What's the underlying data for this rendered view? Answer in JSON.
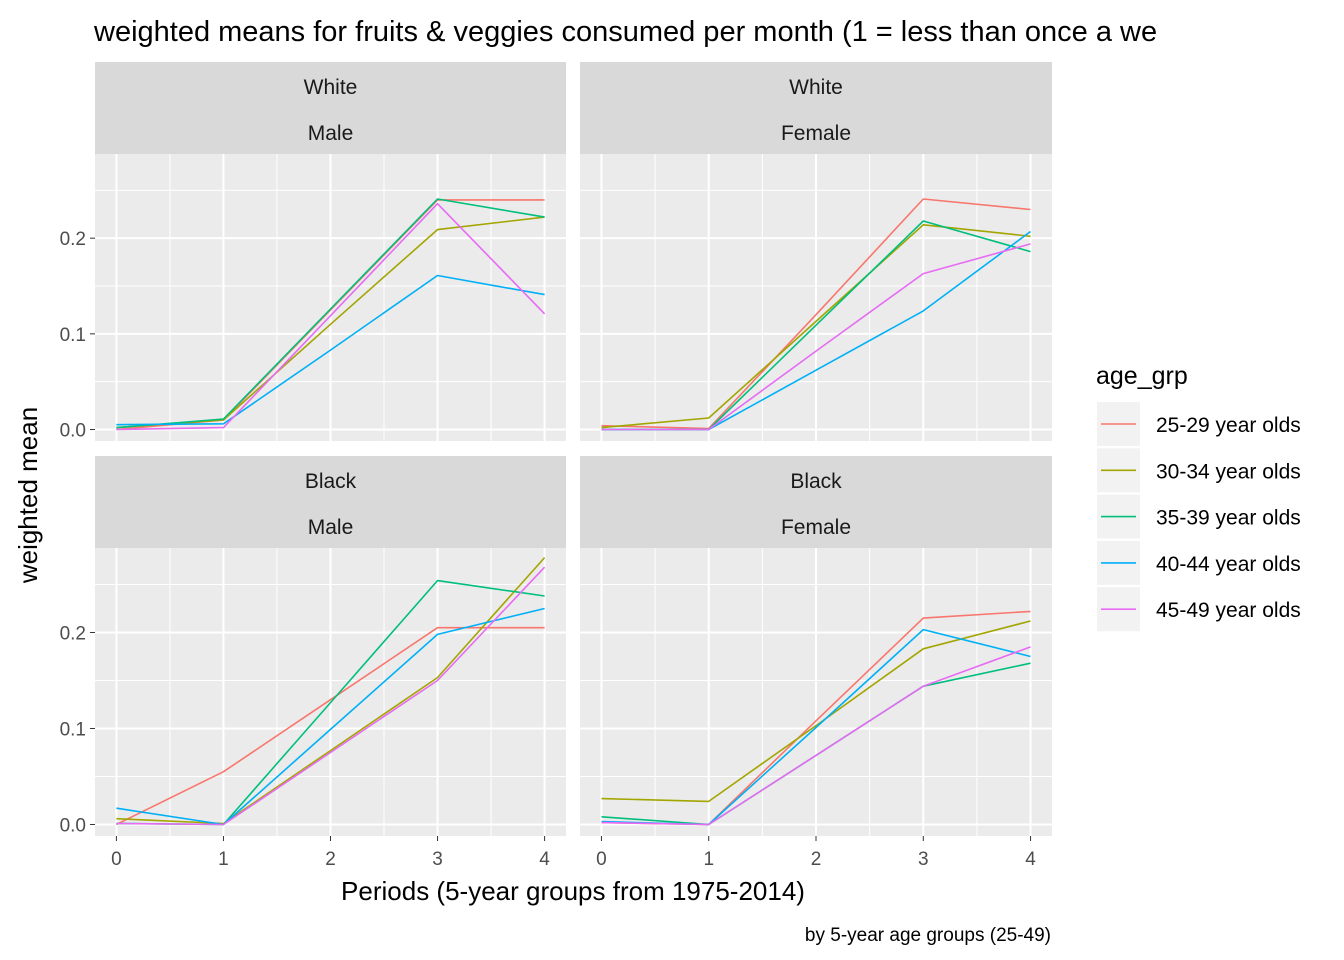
{
  "chart_data": {
    "type": "line",
    "title": "weighted means for fruits & veggies consumed per month (1 = less than once a we",
    "xlabel": "Periods (5-year groups from 1975-2014)",
    "ylabel": "weighted mean",
    "caption": "by 5-year age groups (25-49)",
    "xlim": [
      -0.2,
      4.2
    ],
    "ylim": [
      -0.012,
      0.288
    ],
    "x_ticks": [
      0,
      1,
      2,
      3,
      4
    ],
    "y_ticks": [
      0.0,
      0.1,
      0.2
    ],
    "y_tick_labels": [
      "0.0",
      "0.1",
      "0.2"
    ],
    "grid": true,
    "legend": {
      "title": "age_grp",
      "position": "right",
      "entries": [
        {
          "name": "25-29 year olds",
          "color": "#F8766D"
        },
        {
          "name": "30-34 year olds",
          "color": "#A3A500"
        },
        {
          "name": "35-39 year olds",
          "color": "#00BF7D"
        },
        {
          "name": "40-44 year olds",
          "color": "#00B0F6"
        },
        {
          "name": "45-49 year olds",
          "color": "#E76BF3"
        }
      ]
    },
    "x": [
      0,
      1,
      2,
      3,
      4
    ],
    "panels": [
      {
        "strip": [
          "White",
          "Male"
        ],
        "series": [
          {
            "name": "25-29 year olds",
            "values": [
              0.0,
              0.01,
              0.125,
              0.24,
              0.24
            ]
          },
          {
            "name": "30-34 year olds",
            "values": [
              0.002,
              0.01,
              0.11,
              0.209,
              0.222
            ]
          },
          {
            "name": "35-39 year olds",
            "values": [
              0.002,
              0.011,
              0.126,
              0.241,
              0.222
            ]
          },
          {
            "name": "40-44 year olds",
            "values": [
              0.005,
              0.006,
              0.083,
              0.161,
              0.141
            ]
          },
          {
            "name": "45-49 year olds",
            "values": [
              0.0,
              0.002,
              0.119,
              0.236,
              0.121
            ]
          }
        ]
      },
      {
        "strip": [
          "White",
          "Female"
        ],
        "series": [
          {
            "name": "25-29 year olds",
            "values": [
              0.004,
              0.001,
              0.12,
              0.241,
              0.23
            ]
          },
          {
            "name": "30-34 year olds",
            "values": [
              0.002,
              0.012,
              0.113,
              0.214,
              0.202
            ]
          },
          {
            "name": "35-39 year olds",
            "values": [
              0.0,
              0.0,
              0.109,
              0.218,
              0.186
            ]
          },
          {
            "name": "40-44 year olds",
            "values": [
              0.0,
              0.0,
              0.062,
              0.124,
              0.207
            ]
          },
          {
            "name": "45-49 year olds",
            "values": [
              0.0,
              0.0,
              0.082,
              0.163,
              0.194
            ]
          }
        ]
      },
      {
        "strip": [
          "Black",
          "Male"
        ],
        "series": [
          {
            "name": "25-29 year olds",
            "values": [
              0.0,
              0.055,
              0.13,
              0.205,
              0.205
            ]
          },
          {
            "name": "30-34 year olds",
            "values": [
              0.006,
              0.001,
              0.077,
              0.153,
              0.278
            ]
          },
          {
            "name": "35-39 year olds",
            "values": [
              0.001,
              0.0,
              0.127,
              0.254,
              0.238
            ]
          },
          {
            "name": "40-44 year olds",
            "values": [
              0.017,
              0.0,
              0.099,
              0.198,
              0.225
            ]
          },
          {
            "name": "45-49 year olds",
            "values": [
              0.001,
              0.0,
              0.075,
              0.15,
              0.268
            ]
          }
        ]
      },
      {
        "strip": [
          "Black",
          "Female"
        ],
        "series": [
          {
            "name": "25-29 year olds",
            "values": [
              0.002,
              0.0,
              0.108,
              0.215,
              0.222
            ]
          },
          {
            "name": "30-34 year olds",
            "values": [
              0.027,
              0.024,
              0.103,
              0.183,
              0.212
            ]
          },
          {
            "name": "35-39 year olds",
            "values": [
              0.008,
              0.0,
              0.072,
              0.144,
              0.168
            ]
          },
          {
            "name": "40-44 year olds",
            "values": [
              0.003,
              0.0,
              0.101,
              0.203,
              0.175
            ]
          },
          {
            "name": "45-49 year olds",
            "values": [
              0.002,
              0.0,
              0.072,
              0.144,
              0.185
            ]
          }
        ]
      }
    ]
  }
}
